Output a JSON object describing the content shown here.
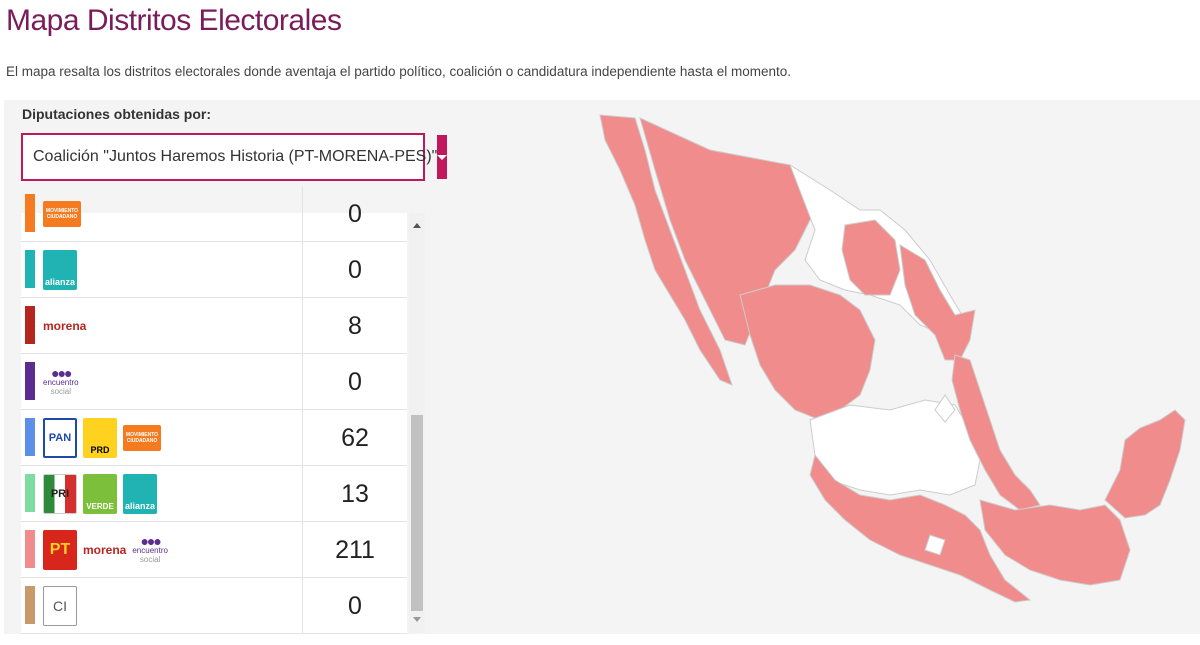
{
  "page": {
    "title": "Mapa Distritos Electorales",
    "subtitle": "El mapa resalta los distritos electorales donde aventaja el partido político, coalición o candidatura independiente hasta el momento."
  },
  "filter": {
    "label": "Diputaciones obtenidas por:",
    "selected": "Coalición \"Juntos Haremos Historia (PT-MORENA-PES)\""
  },
  "rows": [
    {
      "name": "movimiento-ciudadano",
      "color": "#f47b20",
      "logos": [
        "movimiento-ciudadano"
      ],
      "value": "0"
    },
    {
      "name": "nueva-alianza",
      "color": "#1fb3b3",
      "logos": [
        "nueva-alianza"
      ],
      "value": "0"
    },
    {
      "name": "morena",
      "color": "#b5261e",
      "logos": [
        "morena"
      ],
      "value": "8"
    },
    {
      "name": "encuentro-social",
      "color": "#5c2d91",
      "logos": [
        "encuentro-social"
      ],
      "value": "0"
    },
    {
      "name": "pan-prd-mc",
      "color": "#5b8fe8",
      "logos": [
        "pan",
        "prd",
        "movimiento-ciudadano"
      ],
      "value": "62"
    },
    {
      "name": "pri-verde-alianza",
      "color": "#7fdca0",
      "logos": [
        "pri",
        "verde",
        "nueva-alianza"
      ],
      "value": "13"
    },
    {
      "name": "pt-morena-pes",
      "color": "#f08c8c",
      "logos": [
        "pt",
        "morena",
        "encuentro-social"
      ],
      "value": "211"
    },
    {
      "name": "candidatura-independiente",
      "color": "#c9986b",
      "logos": [
        "candidatura-independiente"
      ],
      "value": "0"
    }
  ],
  "logo_text": {
    "pan": "PAN",
    "prd": "PRD",
    "pri": "PRI",
    "verde": "VERDE",
    "pt": "PT",
    "morena": "morena",
    "alianza": "alianza",
    "encuentro": "encuentro",
    "social": "social",
    "ci": "CI",
    "movimiento": "MOVIMIENTO CIUDADANO"
  },
  "map": {
    "highlight_color": "#f08c8c",
    "background_color": "#ffffff",
    "border_color": "#cccccc"
  }
}
